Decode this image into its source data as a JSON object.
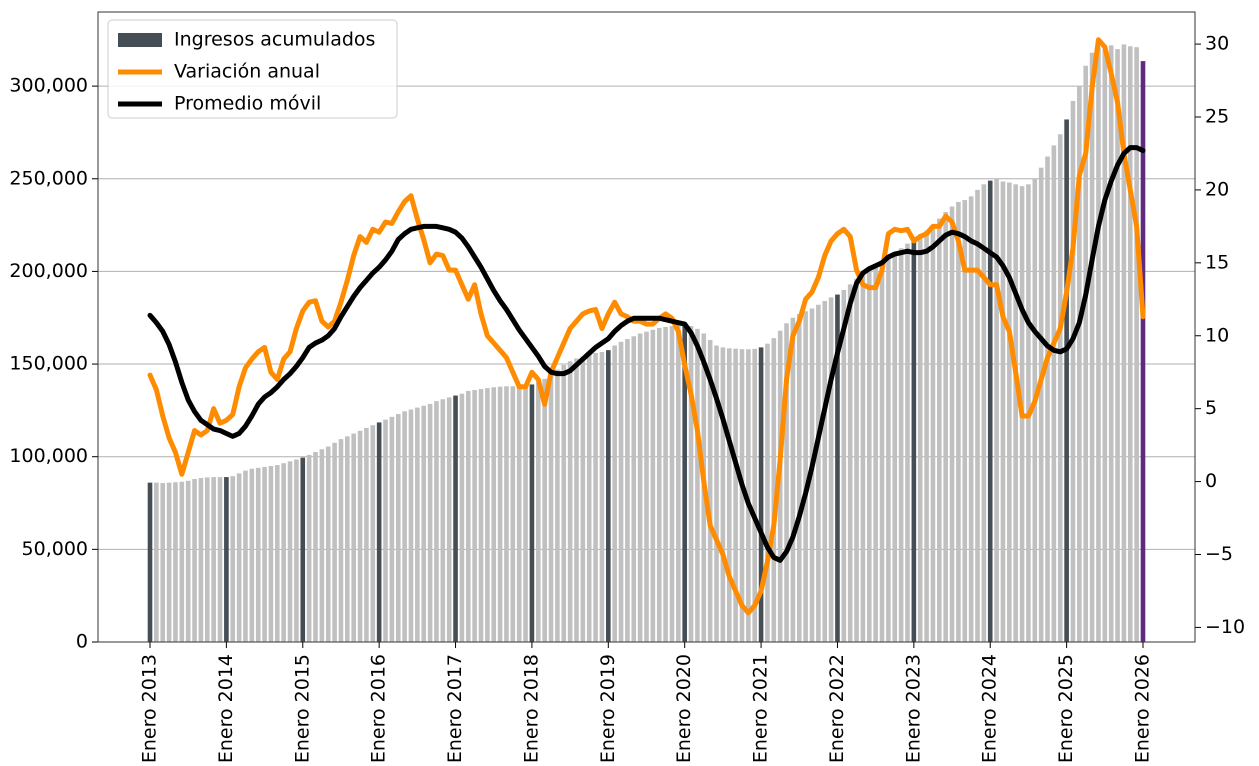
{
  "chart_data": {
    "type": "bar_line",
    "categories": [
      "Enero 2013",
      null,
      null,
      null,
      null,
      null,
      null,
      null,
      null,
      null,
      null,
      null,
      "Enero 2014",
      null,
      null,
      null,
      null,
      null,
      null,
      null,
      null,
      null,
      null,
      null,
      "Enero 2015",
      null,
      null,
      null,
      null,
      null,
      null,
      null,
      null,
      null,
      null,
      null,
      "Enero 2016",
      null,
      null,
      null,
      null,
      null,
      null,
      null,
      null,
      null,
      null,
      null,
      "Enero 2017",
      null,
      null,
      null,
      null,
      null,
      null,
      null,
      null,
      null,
      null,
      null,
      "Enero 2018",
      null,
      null,
      null,
      null,
      null,
      null,
      null,
      null,
      null,
      null,
      null,
      "Enero 2019",
      null,
      null,
      null,
      null,
      null,
      null,
      null,
      null,
      null,
      null,
      null,
      "Enero 2020",
      null,
      null,
      null,
      null,
      null,
      null,
      null,
      null,
      null,
      null,
      null,
      "Enero 2021",
      null,
      null,
      null,
      null,
      null,
      null,
      null,
      null,
      null,
      null,
      null,
      "Enero 2022",
      null,
      null,
      null,
      null,
      null,
      null,
      null,
      null,
      null,
      null,
      null,
      "Enero 2023",
      null,
      null,
      null,
      null,
      null,
      null,
      null,
      null,
      null,
      null,
      null,
      "Enero 2024",
      null,
      null,
      null,
      null,
      null,
      null,
      null,
      null,
      null,
      null,
      null,
      "Enero 2025",
      null,
      null,
      null,
      null,
      null,
      null,
      null,
      null,
      null,
      null,
      null,
      "Enero 2026"
    ],
    "series": [
      {
        "name": "Ingresos acumulados",
        "type": "bar",
        "color": "#454d55",
        "unlabeled_color": "#c0c0c0",
        "last_color": "#5e2b7e",
        "values": [
          86000,
          86000,
          85800,
          86000,
          86200,
          86500,
          87000,
          88000,
          88500,
          88800,
          89000,
          89000,
          89000,
          89500,
          91000,
          92500,
          93500,
          94000,
          94500,
          95000,
          95500,
          96500,
          97500,
          98500,
          99500,
          101000,
          102500,
          104000,
          105500,
          107500,
          109500,
          111000,
          112500,
          114000,
          115500,
          117000,
          118500,
          120000,
          121500,
          123000,
          124500,
          125500,
          126500,
          127500,
          128500,
          130000,
          131000,
          132000,
          133000,
          134000,
          135500,
          136000,
          136500,
          137000,
          137500,
          137800,
          138000,
          138000,
          138200,
          138500,
          139000,
          140000,
          142000,
          144500,
          147000,
          149500,
          151500,
          153000,
          154000,
          155000,
          156000,
          156500,
          157500,
          160000,
          162000,
          163500,
          165000,
          166500,
          167500,
          168500,
          169500,
          170000,
          170500,
          171000,
          171000,
          170500,
          169000,
          166500,
          163000,
          160000,
          159000,
          158500,
          158300,
          158000,
          158000,
          158200,
          159000,
          161000,
          164000,
          168000,
          172000,
          175000,
          177000,
          178500,
          180000,
          182000,
          184000,
          186000,
          187500,
          190000,
          193000,
          196000,
          199000,
          201500,
          204000,
          206000,
          208500,
          210500,
          212500,
          215000,
          217500,
          220000,
          222000,
          225000,
          228500,
          232000,
          235000,
          237500,
          238500,
          240500,
          244000,
          247000,
          249000,
          250000,
          248500,
          248000,
          247000,
          246000,
          247000,
          250000,
          256000,
          262000,
          268000,
          274000,
          282000,
          292000,
          300000,
          311000,
          318000,
          321000,
          321500,
          322000,
          320000,
          322500,
          321500,
          321000,
          313500
        ]
      },
      {
        "name": "Variación anual",
        "type": "line",
        "axis": "y2",
        "color": "#ff8c00",
        "values": [
          7.3,
          6.3,
          4.5,
          3,
          2,
          0.5,
          2,
          3.5,
          3.2,
          3.5,
          5,
          4,
          4.2,
          4.6,
          6.5,
          7.8,
          8.4,
          8.9,
          9.2,
          7.5,
          7,
          8.4,
          8.9,
          10.5,
          11.7,
          12.3,
          12.4,
          11,
          10.6,
          11,
          12.3,
          13.8,
          15.5,
          16.8,
          16.4,
          17.3,
          17.1,
          17.8,
          17.7,
          18.5,
          19.2,
          19.6,
          18,
          16.6,
          15,
          15.6,
          15.5,
          14.5,
          14.5,
          13.5,
          12.5,
          13.5,
          11.5,
          10,
          9.5,
          9,
          8.5,
          7.5,
          6.5,
          6.5,
          7.5,
          7,
          5.3,
          7.5,
          8.5,
          9.5,
          10.5,
          11,
          11.5,
          11.7,
          11.8,
          10.5,
          11.5,
          12.3,
          11.5,
          11.3,
          11,
          11,
          10.8,
          10.8,
          11.2,
          11.5,
          11.2,
          10.3,
          8,
          6,
          3.5,
          0,
          -3,
          -4,
          -5,
          -6.5,
          -7.5,
          -8.5,
          -9,
          -8.5,
          -7.5,
          -5.5,
          -3,
          1.5,
          7,
          10,
          11,
          12.5,
          13,
          14,
          15.5,
          16.5,
          17,
          17.3,
          16.8,
          14.5,
          13.5,
          13.3,
          13.3,
          14.5,
          17,
          17.3,
          17.2,
          17.3,
          16.5,
          16.8,
          17,
          17.5,
          17.5,
          18.2,
          17.8,
          16.5,
          14.5,
          14.5,
          14.5,
          14,
          13.5,
          13.5,
          11.3,
          10.3,
          7.5,
          4.5,
          4.5,
          5.5,
          7,
          8.5,
          9.5,
          10.5,
          13,
          16,
          21,
          22.5,
          27,
          30.3,
          29.8,
          28,
          26,
          22.5,
          20,
          17.5,
          11.3
        ]
      },
      {
        "name": "Promedio móvil",
        "type": "line",
        "axis": "y2",
        "color": "#000000",
        "values": [
          11.4,
          10.9,
          10.3,
          9.4,
          8.2,
          6.8,
          5.6,
          4.8,
          4.2,
          3.9,
          3.6,
          3.5,
          3.3,
          3.1,
          3.3,
          3.8,
          4.5,
          5.3,
          5.8,
          6.1,
          6.5,
          7,
          7.4,
          7.9,
          8.5,
          9.2,
          9.5,
          9.7,
          10,
          10.5,
          11.3,
          12,
          12.7,
          13.3,
          13.8,
          14.3,
          14.7,
          15.2,
          15.8,
          16.6,
          17,
          17.3,
          17.4,
          17.5,
          17.5,
          17.5,
          17.4,
          17.3,
          17.1,
          16.7,
          16.1,
          15.4,
          14.7,
          13.9,
          13.1,
          12.4,
          11.8,
          11.1,
          10.4,
          9.8,
          9.2,
          8.6,
          7.9,
          7.5,
          7.4,
          7.4,
          7.6,
          8,
          8.4,
          8.8,
          9.2,
          9.5,
          9.8,
          10.3,
          10.7,
          11,
          11.2,
          11.2,
          11.2,
          11.2,
          11.2,
          11.1,
          11,
          10.9,
          10.8,
          10.2,
          9.3,
          8.2,
          7,
          5.7,
          4.3,
          2.8,
          1.3,
          -0.2,
          -1.5,
          -2.5,
          -3.5,
          -4.5,
          -5.2,
          -5.4,
          -4.8,
          -3.8,
          -2.4,
          -0.8,
          1,
          3,
          5,
          7,
          8.8,
          10.5,
          12.2,
          13.6,
          14.3,
          14.6,
          14.8,
          15,
          15.4,
          15.6,
          15.7,
          15.8,
          15.7,
          15.7,
          15.8,
          16.1,
          16.5,
          16.9,
          17.1,
          17,
          16.8,
          16.5,
          16.3,
          16,
          15.7,
          15.4,
          14.8,
          14,
          12.9,
          11.8,
          10.9,
          10.3,
          9.8,
          9.3,
          9,
          8.9,
          9.1,
          9.8,
          10.9,
          12.8,
          15.2,
          17.5,
          19.3,
          20.6,
          21.7,
          22.5,
          22.9,
          22.9,
          22.7
        ]
      }
    ],
    "ylim": [
      0,
      340000
    ],
    "yticks": [
      0,
      {
        "value": 50000,
        "label": "50,000"
      },
      {
        "value": 100000,
        "label": "100,000"
      },
      {
        "value": 150000,
        "label": "150,000"
      },
      {
        "value": 200000,
        "label": "200,000"
      },
      {
        "value": 250000,
        "label": "250,000"
      },
      {
        "value": 300000,
        "label": "300,000"
      }
    ],
    "y2lim": [
      -11,
      32.2
    ],
    "y2ticks": [
      {
        "value": -10,
        "label": "−10"
      },
      {
        "value": -5,
        "label": "−5"
      },
      0,
      5,
      10,
      15,
      20,
      25,
      30
    ],
    "grid": true,
    "legend": "upper-left"
  }
}
